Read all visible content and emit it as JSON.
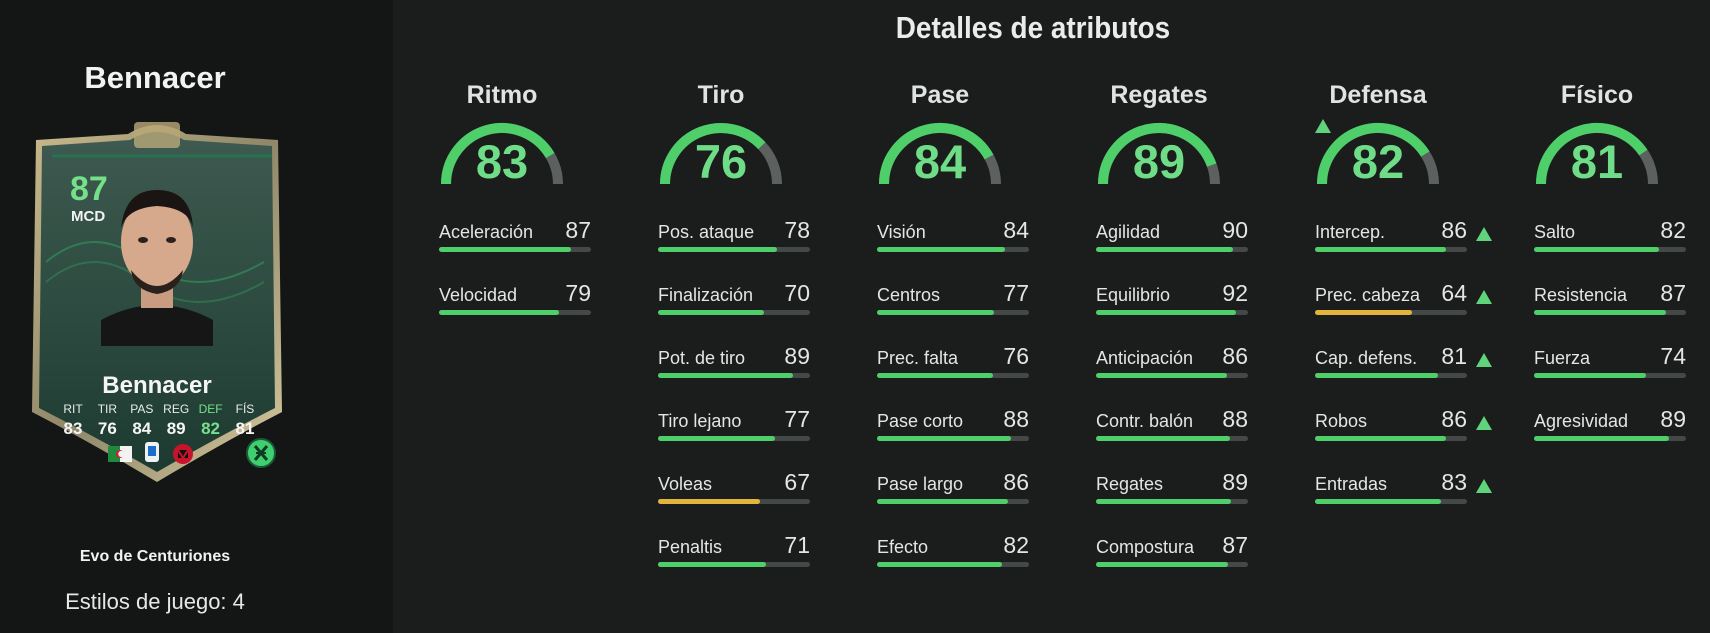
{
  "player": {
    "name": "Bennacer",
    "rating": "87",
    "position": "MCD",
    "card_stats": [
      {
        "label": "RIT",
        "value": "83"
      },
      {
        "label": "TIR",
        "value": "76"
      },
      {
        "label": "PAS",
        "value": "84"
      },
      {
        "label": "REG",
        "value": "89"
      },
      {
        "label": "DEF",
        "value": "82",
        "highlight": true
      },
      {
        "label": "FÍS",
        "value": "81"
      }
    ],
    "evolution": "Evo de Centuriones",
    "playstyles": "Estilos de juego: 4"
  },
  "page_title": "Detalles de atributos",
  "colors": {
    "high": "#4ecf6a",
    "mid": "#e2b43c",
    "gauge_track": "#5c605e",
    "upgrade_arrow": "#5fd47c"
  },
  "groups": [
    {
      "title": "Ritmo",
      "value": "83",
      "upgraded": false,
      "attributes": [
        {
          "label": "Aceleración",
          "value": "87",
          "upgraded": false
        },
        {
          "label": "Velocidad",
          "value": "79",
          "upgraded": false
        }
      ]
    },
    {
      "title": "Tiro",
      "value": "76",
      "upgraded": false,
      "attributes": [
        {
          "label": "Pos. ataque",
          "value": "78",
          "upgraded": false
        },
        {
          "label": "Finalización",
          "value": "70",
          "upgraded": false
        },
        {
          "label": "Pot. de tiro",
          "value": "89",
          "upgraded": false
        },
        {
          "label": "Tiro lejano",
          "value": "77",
          "upgraded": false
        },
        {
          "label": "Voleas",
          "value": "67",
          "upgraded": false
        },
        {
          "label": "Penaltis",
          "value": "71",
          "upgraded": false
        }
      ]
    },
    {
      "title": "Pase",
      "value": "84",
      "upgraded": false,
      "attributes": [
        {
          "label": "Visión",
          "value": "84",
          "upgraded": false
        },
        {
          "label": "Centros",
          "value": "77",
          "upgraded": false
        },
        {
          "label": "Prec. falta",
          "value": "76",
          "upgraded": false
        },
        {
          "label": "Pase corto",
          "value": "88",
          "upgraded": false
        },
        {
          "label": "Pase largo",
          "value": "86",
          "upgraded": false
        },
        {
          "label": "Efecto",
          "value": "82",
          "upgraded": false
        }
      ]
    },
    {
      "title": "Regates",
      "value": "89",
      "upgraded": false,
      "attributes": [
        {
          "label": "Agilidad",
          "value": "90",
          "upgraded": false
        },
        {
          "label": "Equilibrio",
          "value": "92",
          "upgraded": false
        },
        {
          "label": "Anticipación",
          "value": "86",
          "upgraded": false
        },
        {
          "label": "Contr. balón",
          "value": "88",
          "upgraded": false
        },
        {
          "label": "Regates",
          "value": "89",
          "upgraded": false
        },
        {
          "label": "Compostura",
          "value": "87",
          "upgraded": false
        }
      ]
    },
    {
      "title": "Defensa",
      "value": "82",
      "upgraded": true,
      "attributes": [
        {
          "label": "Intercep.",
          "value": "86",
          "upgraded": true
        },
        {
          "label": "Prec. cabeza",
          "value": "64",
          "upgraded": true
        },
        {
          "label": "Cap. defens.",
          "value": "81",
          "upgraded": true
        },
        {
          "label": "Robos",
          "value": "86",
          "upgraded": true
        },
        {
          "label": "Entradas",
          "value": "83",
          "upgraded": true
        }
      ]
    },
    {
      "title": "Físico",
      "value": "81",
      "upgraded": false,
      "attributes": [
        {
          "label": "Salto",
          "value": "82",
          "upgraded": false
        },
        {
          "label": "Resistencia",
          "value": "87",
          "upgraded": false
        },
        {
          "label": "Fuerza",
          "value": "74",
          "upgraded": false
        },
        {
          "label": "Agresividad",
          "value": "89",
          "upgraded": false
        }
      ]
    }
  ]
}
